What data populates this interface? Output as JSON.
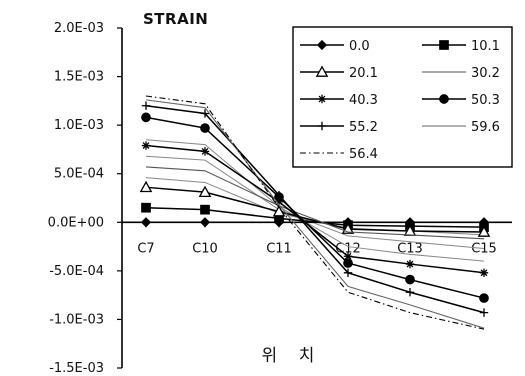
{
  "chart_data": {
    "type": "line",
    "title": "STRAIN",
    "xlabel": "위    치",
    "ylabel": "",
    "categories": [
      "C7",
      "C10",
      "C11",
      "C12",
      "C13",
      "C15"
    ],
    "y_tick_labels": [
      "2.0E-03",
      "1.5E-03",
      "1.0E-03",
      "5.0E-04",
      "0.0E+00",
      "-5.0E-04",
      "-1.0E-03",
      "-1.5E-03"
    ],
    "ylim": [
      -0.0015,
      0.002
    ],
    "grid": false,
    "legend_position": "top-right",
    "series": [
      {
        "name": "0.0",
        "marker": "diamond",
        "dash": "",
        "color": "#000000",
        "values": [
          0,
          0,
          0,
          0,
          0,
          0
        ]
      },
      {
        "name": "10.1",
        "marker": "square",
        "dash": "",
        "color": "#000000",
        "values": [
          0.00015,
          0.00013,
          4e-05,
          -3e-05,
          -4e-05,
          -5e-05
        ]
      },
      {
        "name": "20.1",
        "marker": "triangle",
        "dash": "",
        "color": "#000000",
        "values": [
          0.00036,
          0.00031,
          0.00011,
          -7e-05,
          -9e-05,
          -0.0001
        ]
      },
      {
        "name": "30.2",
        "marker": "none",
        "dash": "",
        "color": "#555555",
        "values": [
          0.00057,
          0.00053,
          0.00017,
          -0.0001,
          -0.00013,
          -0.00017
        ]
      },
      {
        "name": "40.3",
        "marker": "star",
        "dash": "",
        "color": "#000000",
        "values": [
          0.00079,
          0.00073,
          0.00021,
          -0.00035,
          -0.00043,
          -0.00052
        ]
      },
      {
        "name": "50.3",
        "marker": "circle",
        "dash": "",
        "color": "#000000",
        "values": [
          0.00108,
          0.00097,
          0.00026,
          -0.00042,
          -0.00059,
          -0.00078
        ]
      },
      {
        "name": "55.2",
        "marker": "plus",
        "dash": "",
        "color": "#000000",
        "values": [
          0.0012,
          0.00112,
          0.00028,
          -0.00052,
          -0.00072,
          -0.00093
        ]
      },
      {
        "name": "59.6",
        "marker": "none",
        "dash": "",
        "color": "#666666",
        "values": [
          0.00126,
          0.00118,
          0.00018,
          -0.00066,
          -0.00085,
          -0.00109
        ]
      },
      {
        "name": "56.4",
        "marker": "none",
        "dash": "6,3,1.5,3",
        "color": "#000000",
        "values": [
          0.0013,
          0.00122,
          0.00015,
          -0.00072,
          -0.00093,
          -0.0011
        ]
      }
    ],
    "extra_traces": [
      {
        "color": "#888888",
        "values": [
          0.00085,
          0.0008,
          0.00016,
          -0.00025,
          -0.00033,
          -0.0004
        ]
      },
      {
        "color": "#888888",
        "values": [
          0.00068,
          0.00064,
          0.00013,
          -0.00014,
          -0.0002,
          -0.00027
        ]
      },
      {
        "color": "#888888",
        "values": [
          0.00046,
          0.00041,
          9e-05,
          -6e-05,
          -9e-05,
          -0.00013
        ]
      }
    ]
  }
}
